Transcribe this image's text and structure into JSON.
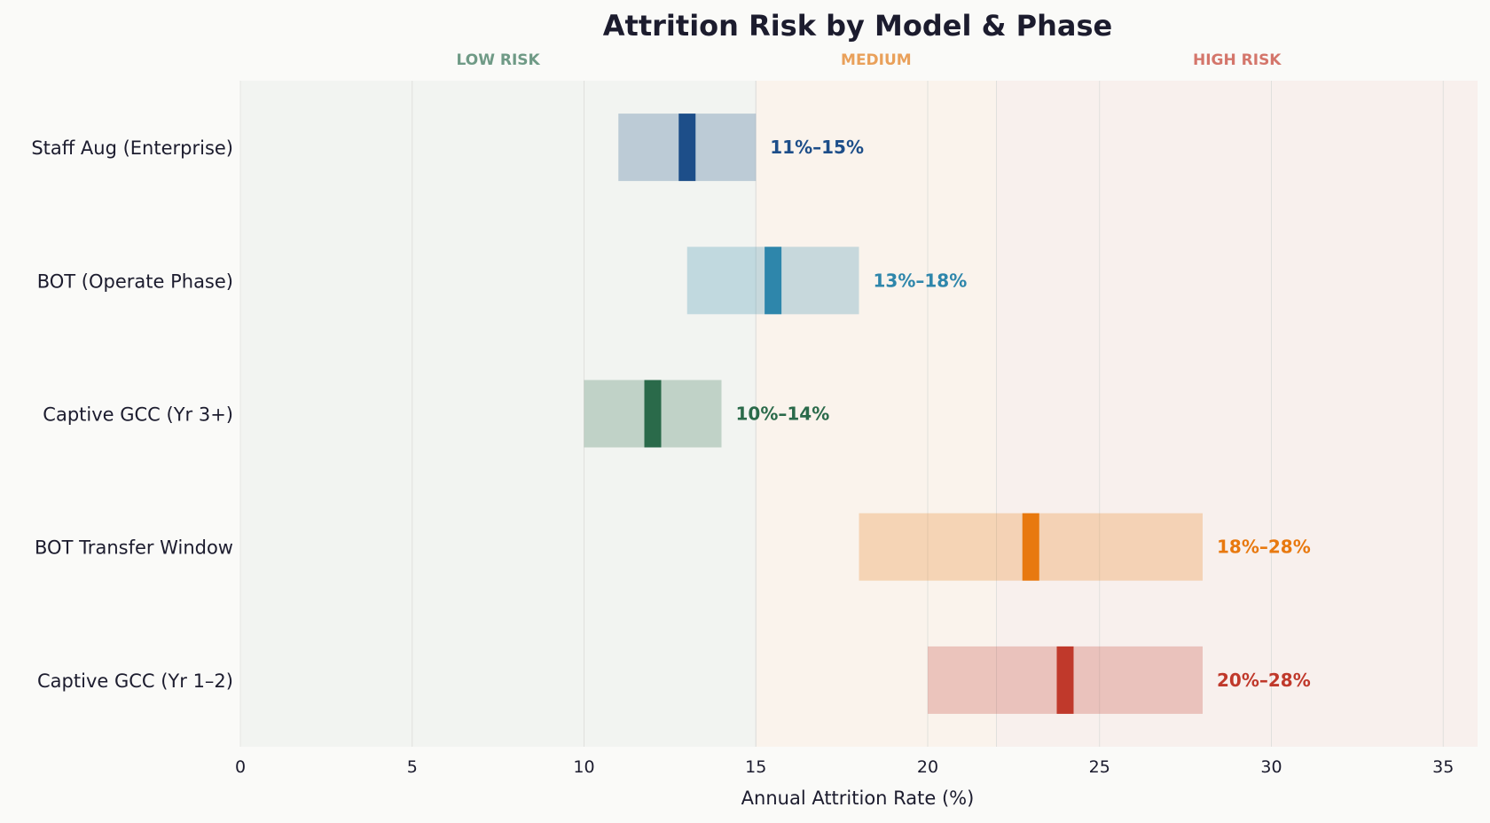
{
  "chart_data": {
    "type": "bar",
    "subtype": "range-bar",
    "title": "Attrition Risk by Model & Phase",
    "xlabel": "Annual Attrition Rate (%)",
    "ylabel": "",
    "xlim": [
      0,
      36
    ],
    "xticks": [
      0,
      5,
      10,
      15,
      20,
      25,
      30,
      35
    ],
    "grid": "vertical",
    "risk_zones": [
      {
        "label": "LOW RISK",
        "from": 0,
        "to": 15,
        "color": "#6f9a86",
        "fill": "#f2f4f1"
      },
      {
        "label": "MEDIUM",
        "from": 15,
        "to": 22,
        "color": "#e9a05a",
        "fill": "#faf3ec"
      },
      {
        "label": "HIGH RISK",
        "from": 22,
        "to": 36,
        "color": "#d4766b",
        "fill": "#f8f0ed"
      }
    ],
    "categories": [
      "Staff Aug (Enterprise)",
      "BOT (Operate Phase)",
      "Captive GCC (Yr 3+)",
      "BOT Transfer Window",
      "Captive GCC (Yr 1–2)"
    ],
    "series": [
      {
        "ranges": [
          [
            11,
            15
          ],
          [
            13,
            18
          ],
          [
            10,
            14
          ],
          [
            18,
            28
          ],
          [
            20,
            28
          ]
        ],
        "markers": [
          13,
          15.5,
          12,
          23,
          24
        ],
        "labels": [
          "11%–15%",
          "13%–18%",
          "10%–14%",
          "18%–28%",
          "20%–28%"
        ],
        "colors": [
          "#1d4e89",
          "#2e86ab",
          "#2a6a4a",
          "#e8790f",
          "#c0392b"
        ]
      }
    ]
  }
}
